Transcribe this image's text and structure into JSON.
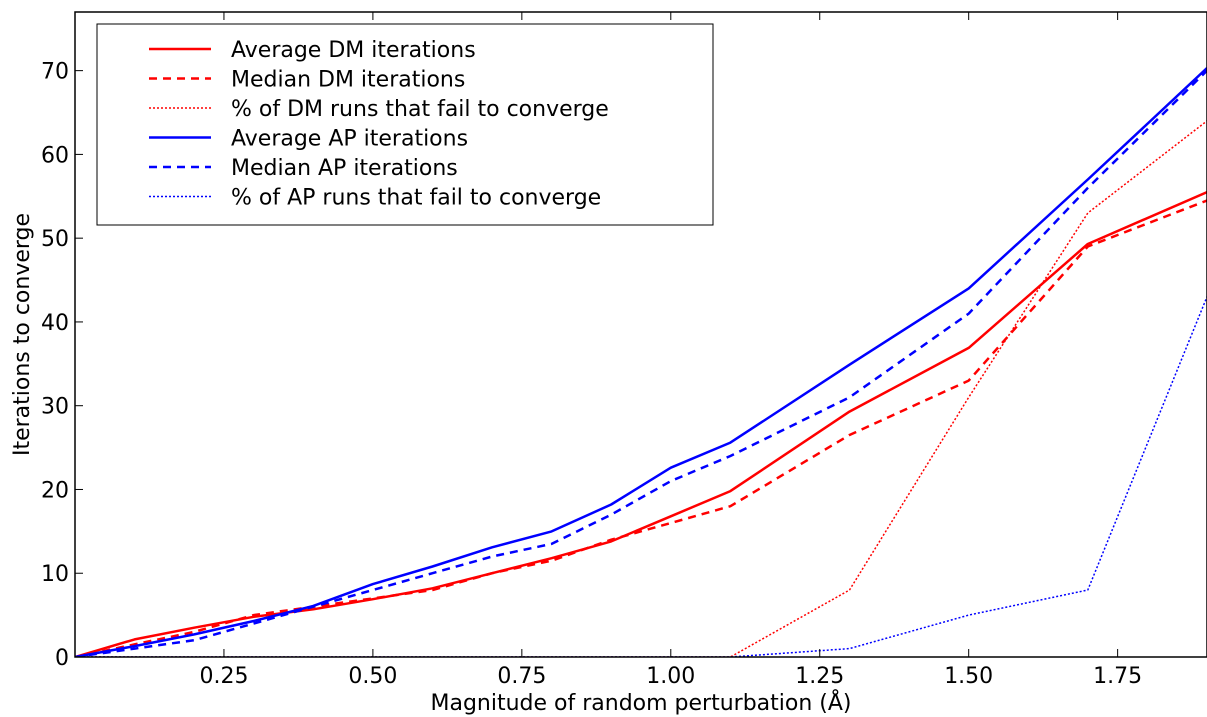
{
  "chart_data": {
    "type": "line",
    "xlabel": "Magnitude of random perturbation (Å)",
    "ylabel": "Iterations to converge",
    "xlim": [
      0.0,
      1.9
    ],
    "ylim": [
      0,
      77
    ],
    "xticks": [
      0.25,
      0.5,
      0.75,
      1.0,
      1.25,
      1.5,
      1.75
    ],
    "xtick_labels": [
      "0.25",
      "0.50",
      "0.75",
      "1.00",
      "1.25",
      "1.50",
      "1.75"
    ],
    "yticks": [
      0,
      10,
      20,
      30,
      40,
      50,
      60,
      70
    ],
    "ytick_labels": [
      "0",
      "10",
      "20",
      "30",
      "40",
      "50",
      "60",
      "70"
    ],
    "grid": false,
    "legend_position": "top-left",
    "series": [
      {
        "name": "Average DM iterations",
        "color": "#ff0000",
        "style": "solid",
        "x": [
          0.0,
          0.1,
          0.2,
          0.3,
          0.4,
          0.5,
          0.6,
          0.7,
          0.8,
          0.9,
          1.0,
          1.1,
          1.3,
          1.5,
          1.7,
          1.9
        ],
        "y": [
          0,
          2.1,
          3.5,
          4.8,
          5.7,
          6.9,
          8.2,
          10.0,
          11.8,
          13.8,
          16.8,
          19.8,
          29.3,
          36.9,
          49.3,
          55.5
        ]
      },
      {
        "name": "Median DM iterations",
        "color": "#ff0000",
        "style": "dashed",
        "x": [
          0.0,
          0.1,
          0.2,
          0.3,
          0.4,
          0.5,
          0.6,
          0.7,
          0.8,
          0.9,
          1.0,
          1.1,
          1.3,
          1.5,
          1.7,
          1.9
        ],
        "y": [
          0,
          1.5,
          3.0,
          5.0,
          6.0,
          7.0,
          8.0,
          10.0,
          11.5,
          14.0,
          16.0,
          18.0,
          26.5,
          33.0,
          49.0,
          54.5
        ]
      },
      {
        "name": "% of DM runs that fail to converge",
        "color": "#ff0000",
        "style": "dotted",
        "x": [
          0.0,
          0.1,
          0.2,
          0.3,
          0.4,
          0.5,
          0.6,
          0.7,
          0.8,
          0.9,
          1.0,
          1.1,
          1.3,
          1.5,
          1.7,
          1.9
        ],
        "y": [
          0,
          0,
          0,
          0,
          0,
          0,
          0,
          0,
          0,
          0,
          0,
          0,
          8,
          31,
          53,
          64
        ]
      },
      {
        "name": "Average AP iterations",
        "color": "#0000ff",
        "style": "solid",
        "x": [
          0.0,
          0.1,
          0.2,
          0.3,
          0.4,
          0.5,
          0.6,
          0.7,
          0.8,
          0.9,
          1.0,
          1.1,
          1.3,
          1.5,
          1.7,
          1.9
        ],
        "y": [
          0,
          1.3,
          2.7,
          4.3,
          6.1,
          8.7,
          10.8,
          13.1,
          15.0,
          18.2,
          22.6,
          25.6,
          34.9,
          44.0,
          57.0,
          70.3
        ]
      },
      {
        "name": "Median AP iterations",
        "color": "#0000ff",
        "style": "dashed",
        "x": [
          0.0,
          0.1,
          0.2,
          0.3,
          0.4,
          0.5,
          0.6,
          0.7,
          0.8,
          0.9,
          1.0,
          1.1,
          1.3,
          1.5,
          1.7,
          1.9
        ],
        "y": [
          0,
          1.0,
          2.0,
          4.0,
          6.0,
          8.0,
          10.0,
          12.0,
          13.5,
          17.0,
          21.0,
          24.0,
          31.0,
          41.0,
          56.0,
          70.0
        ]
      },
      {
        "name": "% of AP runs that fail to converge",
        "color": "#0000ff",
        "style": "dotted",
        "x": [
          0.0,
          0.1,
          0.2,
          0.3,
          0.4,
          0.5,
          0.6,
          0.7,
          0.8,
          0.9,
          1.0,
          1.1,
          1.3,
          1.5,
          1.7,
          1.9
        ],
        "y": [
          0,
          0,
          0,
          0,
          0,
          0,
          0,
          0,
          0,
          0,
          0,
          0,
          1,
          5,
          8,
          43
        ]
      }
    ]
  }
}
